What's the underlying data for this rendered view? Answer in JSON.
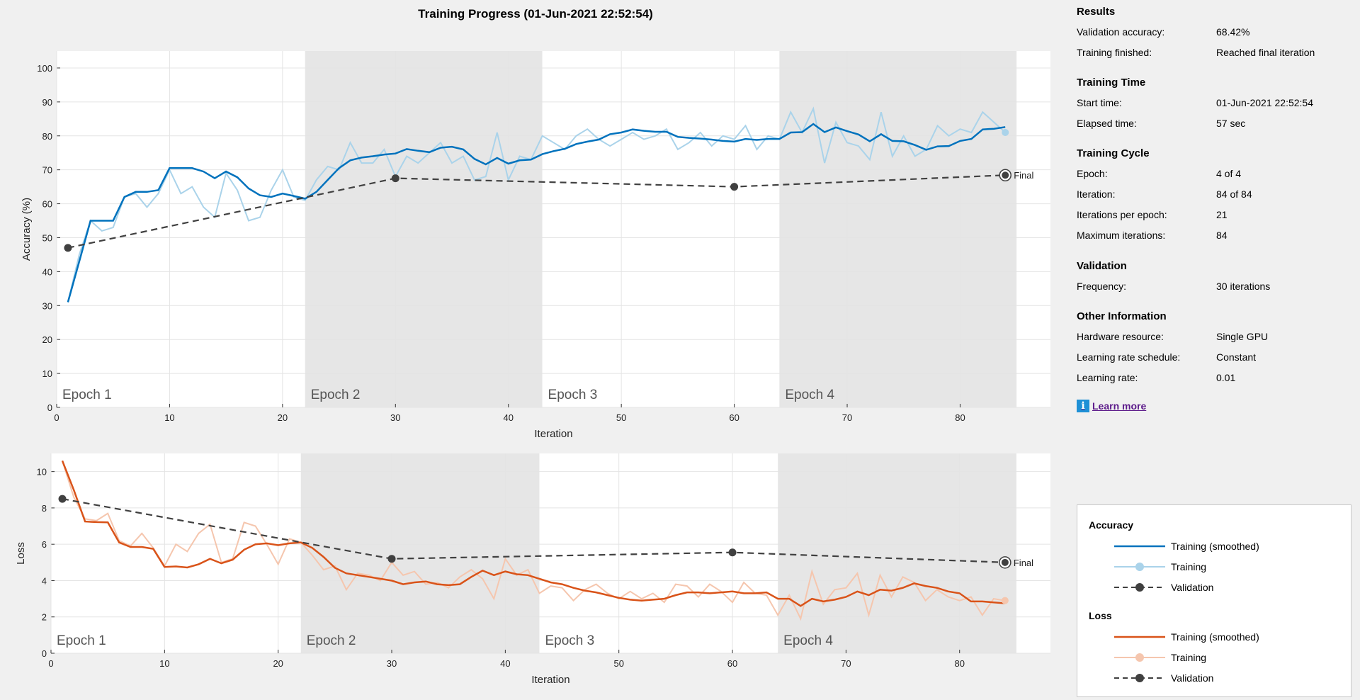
{
  "title": "Training Progress (01-Jun-2021 22:52:54)",
  "colors": {
    "smoothed_acc": "#0072bd",
    "raw_acc": "#aad3ea",
    "smoothed_loss": "#d95319",
    "raw_loss": "#f5c6ae",
    "validation": "#404040",
    "epoch_shade": "#e6e6e6",
    "plot_bg": "#ffffff",
    "grid": "#e4e4e4"
  },
  "chart_data": [
    {
      "type": "line",
      "xlabel": "Iteration",
      "ylabel": "Accuracy (%)",
      "xlim": [
        0,
        88
      ],
      "ylim": [
        0,
        105
      ],
      "xticks": [
        0,
        10,
        20,
        30,
        40,
        50,
        60,
        70,
        80
      ],
      "yticks": [
        0,
        10,
        20,
        30,
        40,
        50,
        60,
        70,
        80,
        90,
        100
      ],
      "grid": true,
      "epochs": [
        {
          "label": "Epoch 1",
          "start": 0,
          "end": 22,
          "shaded": false
        },
        {
          "label": "Epoch 2",
          "start": 22,
          "end": 43,
          "shaded": true
        },
        {
          "label": "Epoch 3",
          "start": 43,
          "end": 64,
          "shaded": false
        },
        {
          "label": "Epoch 4",
          "start": 64,
          "end": 85,
          "shaded": true
        }
      ],
      "final_label": "Final",
      "series": [
        {
          "name": "Training",
          "style": "raw",
          "values": [
            31,
            45,
            55,
            52,
            53,
            62,
            63,
            59,
            63,
            70,
            63,
            65,
            59,
            56,
            69,
            64,
            55,
            56,
            64,
            70,
            62,
            61,
            67,
            71,
            70,
            78,
            72,
            72,
            76,
            68,
            74,
            72,
            75,
            78,
            72,
            74,
            67,
            68,
            81,
            67,
            74,
            73,
            80,
            78,
            76,
            80,
            82,
            79,
            77,
            79,
            81,
            79,
            80,
            82,
            76,
            78,
            81,
            77,
            80,
            79,
            83,
            76,
            80,
            79,
            87,
            81,
            88,
            72,
            84,
            78,
            77,
            73,
            87,
            74,
            80,
            74,
            76,
            83,
            80,
            82,
            81,
            87,
            84,
            81
          ]
        },
        {
          "name": "Training (smoothed)",
          "style": "smoothed",
          "values": [
            31,
            43,
            55,
            55,
            55,
            62,
            63.5,
            63.5,
            64,
            70.5,
            70.5,
            70.5,
            69.5,
            67.5,
            69.5,
            67.8,
            64.5,
            62.5,
            62,
            63,
            62.3,
            61.5,
            63.5,
            67,
            70.5,
            72.8,
            73.6,
            74,
            74.5,
            74.8,
            76.1,
            75.6,
            75.2,
            76.5,
            76.8,
            76,
            73.2,
            71.6,
            73.5,
            71.8,
            72.8,
            73,
            74.6,
            75.5,
            76.2,
            77.6,
            78.3,
            78.9,
            80.5,
            81,
            81.9,
            81.5,
            81.2,
            81.2,
            79.7,
            79.4,
            79.2,
            78.9,
            78.5,
            78.3,
            79.1,
            78.8,
            79.1,
            79.1,
            81,
            81.1,
            83.5,
            81.1,
            82.5,
            81.4,
            80.4,
            78.4,
            80.5,
            78.5,
            78.4,
            77.3,
            75.9,
            76.9,
            77,
            78.5,
            79.1,
            81.9,
            82.1,
            82.6
          ]
        },
        {
          "name": "Validation",
          "style": "validation",
          "x": [
            1,
            30,
            60,
            84
          ],
          "values": [
            47,
            67.5,
            65,
            68.42
          ]
        }
      ]
    },
    {
      "type": "line",
      "xlabel": "Iteration",
      "ylabel": "Loss",
      "xlim": [
        0,
        88
      ],
      "ylim": [
        0,
        11
      ],
      "xticks": [
        0,
        10,
        20,
        30,
        40,
        50,
        60,
        70,
        80
      ],
      "yticks": [
        0,
        2,
        4,
        6,
        8,
        10
      ],
      "grid": true,
      "epochs": [
        {
          "label": "Epoch 1",
          "start": 0,
          "end": 22,
          "shaded": false
        },
        {
          "label": "Epoch 2",
          "start": 22,
          "end": 43,
          "shaded": true
        },
        {
          "label": "Epoch 3",
          "start": 43,
          "end": 64,
          "shaded": false
        },
        {
          "label": "Epoch 4",
          "start": 64,
          "end": 85,
          "shaded": true
        }
      ],
      "final_label": "Final",
      "series": [
        {
          "name": "Training",
          "style": "raw",
          "values": [
            10.6,
            8.6,
            7.4,
            7.3,
            7.7,
            6.2,
            5.9,
            6.6,
            5.8,
            4.8,
            6,
            5.6,
            6.6,
            7.1,
            5,
            5.2,
            7.2,
            7,
            6,
            4.9,
            6.3,
            6.1,
            5.4,
            4.6,
            4.8,
            3.5,
            4.4,
            4.3,
            4,
            5,
            4.3,
            4.5,
            3.8,
            3.9,
            3.6,
            4.2,
            4.6,
            4.1,
            3,
            5.2,
            4.3,
            4.6,
            3.3,
            3.7,
            3.6,
            2.9,
            3.5,
            3.8,
            3.3,
            3,
            3.4,
            3,
            3.3,
            2.8,
            3.8,
            3.7,
            3.1,
            3.8,
            3.4,
            2.8,
            3.9,
            3.3,
            3.2,
            2.1,
            3.2,
            1.9,
            4.5,
            2.7,
            3.5,
            3.6,
            4.4,
            2.1,
            4.3,
            3.1,
            4.2,
            3.9,
            2.9,
            3.5,
            3.1,
            2.9,
            3.1,
            2.1,
            3,
            2.9
          ]
        },
        {
          "name": "Training (smoothed)",
          "style": "smoothed",
          "values": [
            10.6,
            9,
            7.25,
            7.22,
            7.21,
            6.1,
            5.85,
            5.85,
            5.75,
            4.75,
            4.78,
            4.72,
            4.9,
            5.2,
            4.95,
            5.15,
            5.7,
            6,
            6.05,
            5.95,
            6.05,
            6.1,
            5.8,
            5.3,
            4.7,
            4.4,
            4.3,
            4.2,
            4.1,
            4,
            3.8,
            3.9,
            3.95,
            3.8,
            3.75,
            3.8,
            4.2,
            4.55,
            4.3,
            4.5,
            4.35,
            4.3,
            4.1,
            3.9,
            3.8,
            3.6,
            3.45,
            3.35,
            3.2,
            3.05,
            2.95,
            2.9,
            2.95,
            3,
            3.2,
            3.35,
            3.35,
            3.3,
            3.35,
            3.4,
            3.3,
            3.3,
            3.35,
            3,
            3,
            2.6,
            3,
            2.85,
            2.95,
            3.1,
            3.4,
            3.2,
            3.5,
            3.45,
            3.6,
            3.85,
            3.7,
            3.6,
            3.4,
            3.3,
            2.85,
            2.85,
            2.8,
            2.75
          ]
        },
        {
          "name": "Validation",
          "style": "validation",
          "x": [
            1,
            30,
            60,
            84
          ],
          "values": [
            8.5,
            5.2,
            5.55,
            5.0
          ]
        }
      ]
    }
  ],
  "side": {
    "sections": [
      {
        "title": "Results",
        "rows": [
          {
            "label": "Validation accuracy:",
            "value": "68.42%"
          },
          {
            "label": "Training finished:",
            "value": "Reached final iteration"
          }
        ]
      },
      {
        "title": "Training Time",
        "rows": [
          {
            "label": "Start time:",
            "value": "01-Jun-2021 22:52:54"
          },
          {
            "label": "Elapsed time:",
            "value": "57 sec"
          }
        ]
      },
      {
        "title": "Training Cycle",
        "rows": [
          {
            "label": "Epoch:",
            "value": "4 of 4"
          },
          {
            "label": "Iteration:",
            "value": "84 of 84"
          },
          {
            "label": "Iterations per epoch:",
            "value": "21"
          },
          {
            "label": "Maximum iterations:",
            "value": "84"
          }
        ]
      },
      {
        "title": "Validation",
        "rows": [
          {
            "label": "Frequency:",
            "value": "30 iterations"
          }
        ]
      },
      {
        "title": "Other Information",
        "rows": [
          {
            "label": "Hardware resource:",
            "value": "Single GPU"
          },
          {
            "label": "Learning rate schedule:",
            "value": "Constant"
          },
          {
            "label": "Learning rate:",
            "value": "0.01"
          }
        ]
      }
    ],
    "learn_more": "Learn more",
    "info_icon": "info-icon"
  },
  "legend": {
    "groups": [
      {
        "title": "Accuracy",
        "items": [
          {
            "label": "Training (smoothed)",
            "style": "smoothed",
            "color": "#0072bd"
          },
          {
            "label": "Training",
            "style": "raw",
            "color": "#aad3ea"
          },
          {
            "label": "Validation",
            "style": "validation",
            "color": "#404040"
          }
        ]
      },
      {
        "title": "Loss",
        "items": [
          {
            "label": "Training (smoothed)",
            "style": "smoothed",
            "color": "#d95319"
          },
          {
            "label": "Training",
            "style": "raw",
            "color": "#f5c6ae"
          },
          {
            "label": "Validation",
            "style": "validation",
            "color": "#404040"
          }
        ]
      }
    ]
  }
}
